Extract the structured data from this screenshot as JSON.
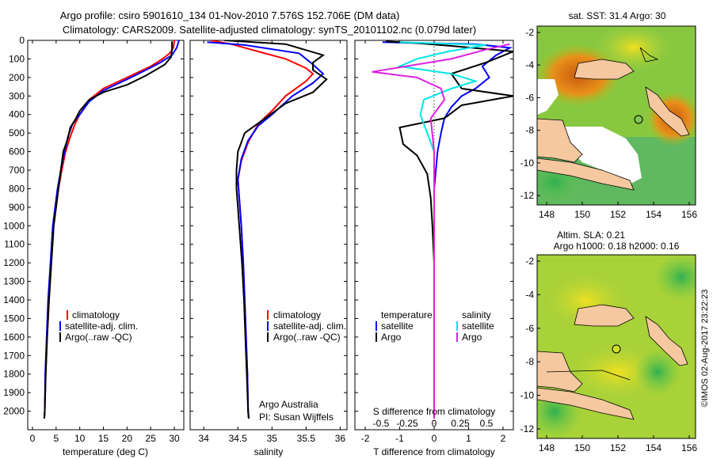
{
  "header": {
    "line1": "Argo profile: csiro 5901610_134 01-Nov-2010 7.576S 152.706E (DM data)",
    "line2": "Climatology: CARS2009. Satellite-adjusted climatology: synTS_20101102.nc (0.079d later)"
  },
  "colors": {
    "climatology": "#ff0000",
    "satellite": "#0000ff",
    "argo": "#000000",
    "sat_s": "#00e5e5",
    "argo_s": "#e020e0"
  },
  "chart_data": [
    {
      "id": "temperature",
      "type": "line",
      "xlabel": "temperature (deg C)",
      "ylabel": "",
      "xlim": [
        -1,
        32
      ],
      "ylim": [
        0,
        2100
      ],
      "xticks": [
        0,
        5,
        10,
        15,
        20,
        25,
        30
      ],
      "yticks": [
        0,
        100,
        200,
        300,
        400,
        500,
        600,
        700,
        800,
        900,
        1000,
        1100,
        1200,
        1300,
        1400,
        1500,
        1600,
        1700,
        1800,
        1900,
        2000
      ],
      "legend": [
        "climatology",
        "satellite-adj. clim.",
        "Argo(..raw -QC)"
      ],
      "series": [
        {
          "name": "climatology",
          "color": "#ff0000",
          "points": [
            [
              30,
              0
            ],
            [
              29.8,
              40
            ],
            [
              29,
              70
            ],
            [
              27.5,
              100
            ],
            [
              25,
              140
            ],
            [
              20,
              200
            ],
            [
              15,
              260
            ],
            [
              12,
              320
            ],
            [
              10,
              400
            ],
            [
              9,
              450
            ],
            [
              8,
              520
            ],
            [
              7,
              600
            ],
            [
              6.2,
              700
            ],
            [
              5.5,
              800
            ],
            [
              5,
              900
            ],
            [
              4.5,
              1000
            ],
            [
              4,
              1200
            ],
            [
              3.5,
              1400
            ],
            [
              3.1,
              1600
            ],
            [
              2.8,
              1800
            ],
            [
              2.6,
              2000
            ],
            [
              2.5,
              2040
            ]
          ]
        },
        {
          "name": "satellite-adj. clim.",
          "color": "#0000ff",
          "points": [
            [
              31,
              0
            ],
            [
              30.5,
              40
            ],
            [
              29.5,
              80
            ],
            [
              27,
              120
            ],
            [
              24,
              160
            ],
            [
              20,
              210
            ],
            [
              15,
              270
            ],
            [
              12,
              330
            ],
            [
              10,
              400
            ],
            [
              8.5,
              450
            ],
            [
              7.5,
              520
            ],
            [
              6.8,
              600
            ],
            [
              6,
              700
            ],
            [
              5.3,
              800
            ],
            [
              4.8,
              900
            ],
            [
              4.3,
              1000
            ],
            [
              3.8,
              1200
            ],
            [
              3.3,
              1400
            ],
            [
              3,
              1600
            ],
            [
              2.7,
              1800
            ],
            [
              2.6,
              2000
            ],
            [
              2.5,
              2040
            ]
          ]
        },
        {
          "name": "Argo(..raw -QC)",
          "color": "#000000",
          "points": [
            [
              29.5,
              5
            ],
            [
              29.5,
              50
            ],
            [
              29.3,
              90
            ],
            [
              28,
              130
            ],
            [
              24,
              190
            ],
            [
              20,
              240
            ],
            [
              15,
              280
            ],
            [
              12,
              320
            ],
            [
              10,
              380
            ],
            [
              9,
              430
            ],
            [
              8,
              470
            ],
            [
              7.5,
              530
            ],
            [
              6.5,
              600
            ],
            [
              6,
              700
            ],
            [
              5.5,
              800
            ],
            [
              5,
              900
            ],
            [
              4.5,
              1000
            ],
            [
              4,
              1200
            ],
            [
              3.5,
              1400
            ],
            [
              3.1,
              1600
            ],
            [
              2.8,
              1800
            ],
            [
              2.6,
              2000
            ],
            [
              2.5,
              2040
            ]
          ]
        }
      ]
    },
    {
      "id": "salinity",
      "type": "line",
      "xlabel": "salinity",
      "ylabel": "",
      "xlim": [
        33.8,
        36.1
      ],
      "ylim": [
        0,
        2100
      ],
      "xticks": [
        34,
        34.5,
        35,
        35.5,
        36
      ],
      "xticklabels": [
        "34",
        "34.5",
        "35",
        "35.5",
        "36"
      ],
      "legend": [
        "climatology",
        "satellite-adj. clim.",
        "Argo(..raw -QC)"
      ],
      "series": [
        {
          "name": "climatology",
          "color": "#ff0000",
          "points": [
            [
              34.1,
              0
            ],
            [
              34.4,
              20
            ],
            [
              34.8,
              60
            ],
            [
              35.2,
              100
            ],
            [
              35.5,
              150
            ],
            [
              35.6,
              180
            ],
            [
              35.5,
              220
            ],
            [
              35.2,
              300
            ],
            [
              35,
              380
            ],
            [
              34.8,
              450
            ],
            [
              34.65,
              550
            ],
            [
              34.55,
              650
            ],
            [
              34.5,
              750
            ],
            [
              34.52,
              850
            ],
            [
              34.55,
              1000
            ],
            [
              34.58,
              1200
            ],
            [
              34.6,
              1400
            ],
            [
              34.62,
              1600
            ],
            [
              34.64,
              1800
            ],
            [
              34.65,
              2000
            ],
            [
              34.66,
              2040
            ]
          ]
        },
        {
          "name": "satellite-adj. clim.",
          "color": "#0000ff",
          "points": [
            [
              34.05,
              10
            ],
            [
              34.6,
              25
            ],
            [
              35.4,
              70
            ],
            [
              35.6,
              130
            ],
            [
              35.75,
              180
            ],
            [
              35.6,
              230
            ],
            [
              35.3,
              300
            ],
            [
              35,
              400
            ],
            [
              34.8,
              460
            ],
            [
              34.65,
              540
            ],
            [
              34.55,
              640
            ],
            [
              34.5,
              750
            ],
            [
              34.52,
              850
            ],
            [
              34.55,
              1000
            ],
            [
              34.58,
              1200
            ],
            [
              34.6,
              1400
            ],
            [
              34.62,
              1600
            ],
            [
              34.64,
              1800
            ],
            [
              34.65,
              2000
            ],
            [
              34.66,
              2040
            ]
          ]
        },
        {
          "name": "Argo(..raw -QC)",
          "color": "#000000",
          "points": [
            [
              34.3,
              0
            ],
            [
              35.2,
              20
            ],
            [
              35.75,
              80
            ],
            [
              35.6,
              120
            ],
            [
              35.6,
              160
            ],
            [
              35.8,
              210
            ],
            [
              35.6,
              280
            ],
            [
              35.2,
              340
            ],
            [
              34.9,
              420
            ],
            [
              34.6,
              500
            ],
            [
              34.5,
              600
            ],
            [
              34.48,
              700
            ],
            [
              34.48,
              800
            ],
            [
              34.5,
              900
            ],
            [
              34.52,
              1000
            ],
            [
              34.56,
              1200
            ],
            [
              34.59,
              1400
            ],
            [
              34.61,
              1600
            ],
            [
              34.63,
              1800
            ],
            [
              34.65,
              2000
            ],
            [
              34.66,
              2040
            ]
          ]
        }
      ]
    },
    {
      "id": "differences",
      "type": "line",
      "xlabel": "T difference from climatology",
      "xlabel_top": "S difference from climatology",
      "xlim": [
        -2.3,
        2.3
      ],
      "ylim": [
        0,
        2100
      ],
      "xticks": [
        -2,
        -1,
        0,
        1,
        2
      ],
      "top_ticks": [
        "-0.5",
        "-0.25",
        "0",
        "0.25",
        "0.5"
      ],
      "legend_left_title": "temperature",
      "legend_right_title": "salinity",
      "legend_left": [
        "satellite",
        "Argo"
      ],
      "legend_right": [
        "satellite",
        "Argo"
      ],
      "series": [
        {
          "name": "satellite",
          "color": "#0000ff",
          "points": [
            [
              -1.5,
              10
            ],
            [
              1.2,
              20
            ],
            [
              2.2,
              40
            ],
            [
              1.8,
              80
            ],
            [
              1.4,
              140
            ],
            [
              1.6,
              200
            ],
            [
              1.2,
              260
            ],
            [
              0.8,
              300
            ],
            [
              0.5,
              360
            ],
            [
              0.3,
              420
            ],
            [
              0.2,
              500
            ],
            [
              0.1,
              600
            ],
            [
              0.05,
              700
            ],
            [
              0,
              800
            ],
            [
              0,
              1000
            ],
            [
              0,
              1500
            ],
            [
              0,
              2040
            ]
          ]
        },
        {
          "name": "Argo",
          "color": "#000000",
          "points": [
            [
              -1.4,
              5
            ],
            [
              -0.5,
              15
            ],
            [
              0.5,
              30
            ],
            [
              2.3,
              60
            ],
            [
              1.5,
              120
            ],
            [
              0.5,
              180
            ],
            [
              0.8,
              260
            ],
            [
              2.3,
              300
            ],
            [
              0.8,
              350
            ],
            [
              0.3,
              420
            ],
            [
              -1,
              470
            ],
            [
              -0.9,
              560
            ],
            [
              -0.5,
              620
            ],
            [
              -0.2,
              720
            ],
            [
              -0.1,
              850
            ],
            [
              -0.05,
              1000
            ],
            [
              0,
              1200
            ],
            [
              0,
              1500
            ],
            [
              0,
              2040
            ]
          ]
        },
        {
          "name": "satellite",
          "color": "#00e5e5",
          "points": [
            [
              -1,
              10
            ],
            [
              1.5,
              25
            ],
            [
              0.4,
              60
            ],
            [
              -0.5,
              100
            ],
            [
              -1,
              140
            ],
            [
              0.5,
              180
            ],
            [
              1.2,
              220
            ],
            [
              0.5,
              260
            ],
            [
              -0.3,
              320
            ],
            [
              -0.4,
              400
            ],
            [
              -0.2,
              500
            ],
            [
              0,
              600
            ],
            [
              0,
              800
            ],
            [
              0,
              1300
            ],
            [
              0,
              2040
            ]
          ]
        },
        {
          "name": "Argo",
          "color": "#e020e0",
          "points": [
            [
              2.2,
              20
            ],
            [
              1.5,
              50
            ],
            [
              0.5,
              100
            ],
            [
              -1.8,
              170
            ],
            [
              -0.5,
              200
            ],
            [
              0.2,
              260
            ],
            [
              0.3,
              320
            ],
            [
              -0.1,
              420
            ],
            [
              0,
              600
            ],
            [
              0,
              1000
            ],
            [
              0,
              1500
            ],
            [
              0,
              2040
            ]
          ]
        }
      ]
    }
  ],
  "panel_text": {
    "line1": "Argo Australia",
    "line2": "PI: Susan Wijffels"
  },
  "maps": [
    {
      "id": "sst-map",
      "title": "sat. SST: 31.4 Argo: 30",
      "xticks": [
        "148",
        "150",
        "152",
        "154",
        "156"
      ],
      "yticks": [
        "-2",
        "-4",
        "-6",
        "-8",
        "-10",
        "-12"
      ]
    },
    {
      "id": "sla-map",
      "title_line1": "Altim. SLA: 0.21",
      "title_line2": "Argo h1000: 0.18 h2000: 0.16",
      "xticks": [
        "148",
        "150",
        "152",
        "154",
        "156"
      ],
      "yticks": [
        "-2",
        "-4",
        "-6",
        "-8",
        "-10",
        "-12"
      ]
    }
  ],
  "credit": "©IMOS 02-Aug-2017 23:22:23"
}
